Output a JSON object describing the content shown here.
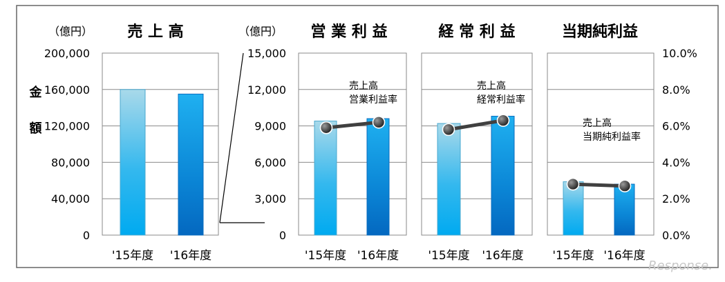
{
  "watermark": "Response.",
  "chart_data": [
    {
      "type": "bar",
      "id": "sales",
      "title": "売 上 高",
      "unit": "（億円）",
      "ylabel": "金 額",
      "categories": [
        "'15年度",
        "'16年度"
      ],
      "values": [
        160000,
        155000
      ],
      "ylim": [
        0,
        200000
      ],
      "yticks": [
        "0",
        "40,000",
        "80,000",
        "120,000",
        "160,000",
        "200,000"
      ],
      "grid": true
    },
    {
      "type": "bar",
      "id": "operating-profit",
      "title": "営 業 利 益",
      "unit": "（億円）",
      "categories": [
        "'15年度",
        "'16年度"
      ],
      "values": [
        9400,
        9600
      ],
      "ylim": [
        0,
        15000
      ],
      "yticks": [
        "0",
        "3,000",
        "6,000",
        "9,000",
        "12,000",
        "15,000"
      ],
      "ratio_label": [
        "売上高",
        "営業利益率"
      ],
      "ratio_values": [
        5.9,
        6.2
      ],
      "ratio_ylim": [
        0,
        10
      ]
    },
    {
      "type": "bar",
      "id": "ordinary-profit",
      "title": "経 常 利 益",
      "categories": [
        "'15年度",
        "'16年度"
      ],
      "values": [
        9200,
        9800
      ],
      "ylim": [
        0,
        15000
      ],
      "ratio_label": [
        "売上高",
        "経常利益率"
      ],
      "ratio_values": [
        5.8,
        6.3
      ],
      "ratio_ylim": [
        0,
        10
      ]
    },
    {
      "type": "bar",
      "id": "net-profit",
      "title": "当期純利益",
      "categories": [
        "'15年度",
        "'16年度"
      ],
      "values": [
        4400,
        4200
      ],
      "ylim": [
        0,
        15000
      ],
      "ratio_label": [
        "売上高",
        "当期純利益率"
      ],
      "ratio_values": [
        2.8,
        2.7
      ],
      "ratio_ylim": [
        0,
        10
      ],
      "ratio_yticks": [
        "0.0%",
        "2.0%",
        "4.0%",
        "6.0%",
        "8.0%",
        "10.0%"
      ]
    }
  ]
}
